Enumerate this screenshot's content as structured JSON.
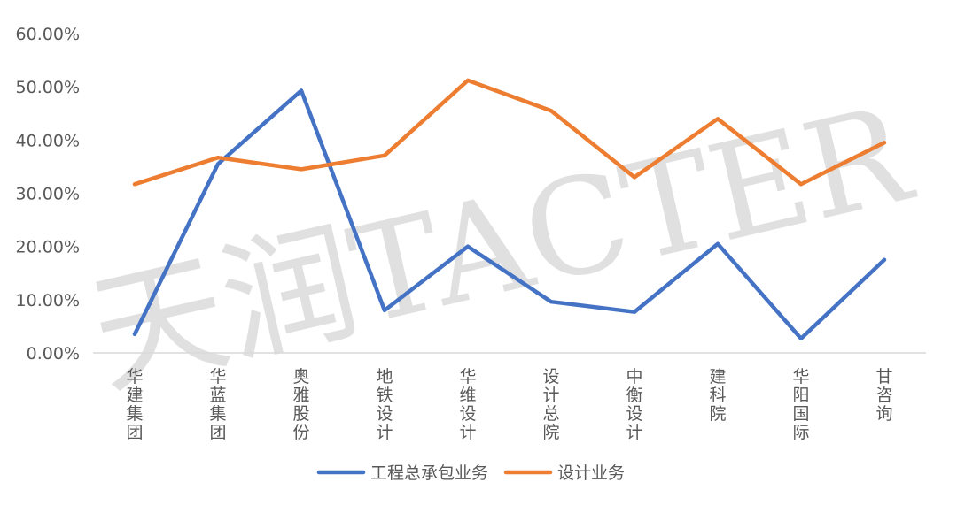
{
  "chart_data": {
    "type": "line",
    "categories": [
      [
        "华",
        "建",
        "集",
        "团"
      ],
      [
        "华",
        "蓝",
        "集",
        "团"
      ],
      [
        "奥",
        "雅",
        "股",
        "份"
      ],
      [
        "地",
        "铁",
        "设",
        "计"
      ],
      [
        "华",
        "维",
        "设",
        "计"
      ],
      [
        "设",
        "计",
        "总",
        "院"
      ],
      [
        "中",
        "衡",
        "设",
        "计"
      ],
      [
        "建",
        "科",
        "院"
      ],
      [
        "华",
        "阳",
        "国",
        "际"
      ],
      [
        "甘",
        "咨",
        "询"
      ]
    ],
    "series": [
      {
        "name": "工程总承包业务",
        "color": "#4472C4",
        "values": [
          3.5,
          35.5,
          49.3,
          8.0,
          20.0,
          9.6,
          7.7,
          20.5,
          2.7,
          17.5
        ]
      },
      {
        "name": "设计业务",
        "color": "#ED7D31",
        "values": [
          31.7,
          36.7,
          34.5,
          37.1,
          51.2,
          45.5,
          33.0,
          44.0,
          31.7,
          39.5
        ]
      }
    ],
    "y_ticks": [
      "0.00%",
      "10.00%",
      "20.00%",
      "30.00%",
      "40.00%",
      "50.00%",
      "60.00%"
    ],
    "ylim": [
      0,
      60
    ],
    "grid": false,
    "legend_position": "bottom",
    "watermark": "天润TACTER"
  }
}
